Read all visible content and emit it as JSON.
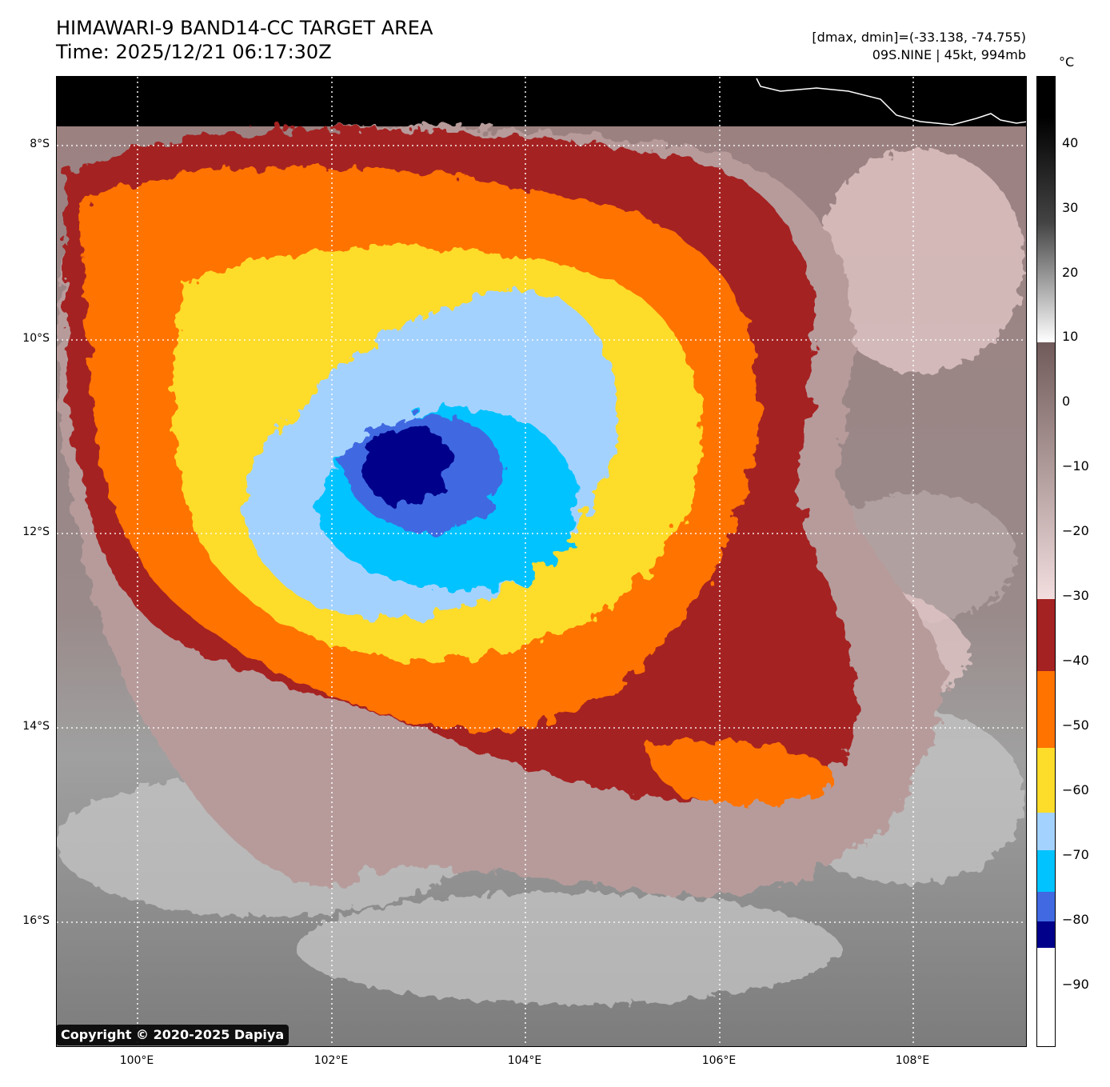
{
  "header": {
    "title_line1": "HIMAWARI-9 BAND14-CC TARGET AREA",
    "title_line2": "Time: 2025/12/21 06:17:30Z",
    "range_text": "[dmax, dmin]=(-33.138, -74.755)",
    "storm_text": "09S.NINE | 45kt, 994mb"
  },
  "map": {
    "lat_labels": [
      "8°S",
      "10°S",
      "12°S",
      "14°S",
      "16°S"
    ],
    "lon_labels": [
      "100°E",
      "102°E",
      "104°E",
      "106°E",
      "108°E"
    ],
    "copyright": "Copyright © 2020-2025 Dapiya"
  },
  "colorbar": {
    "unit": "°C",
    "tick_labels": [
      "40",
      "30",
      "20",
      "10",
      "0",
      "−10",
      "−20",
      "−30",
      "−40",
      "−50",
      "−60",
      "−70",
      "−80",
      "−90"
    ],
    "colors": {
      "warm_gray": "#bdbdbd",
      "mauve": "#8a6a6a",
      "pink": "#e8c8c8",
      "dark_red": "#a52222",
      "orange": "#ff7300",
      "yellow": "#fddc2a",
      "light_blue": "#a4d2ff",
      "sky_blue": "#00c3ff",
      "royal_blue": "#4169e1",
      "navy": "#00008b"
    }
  }
}
